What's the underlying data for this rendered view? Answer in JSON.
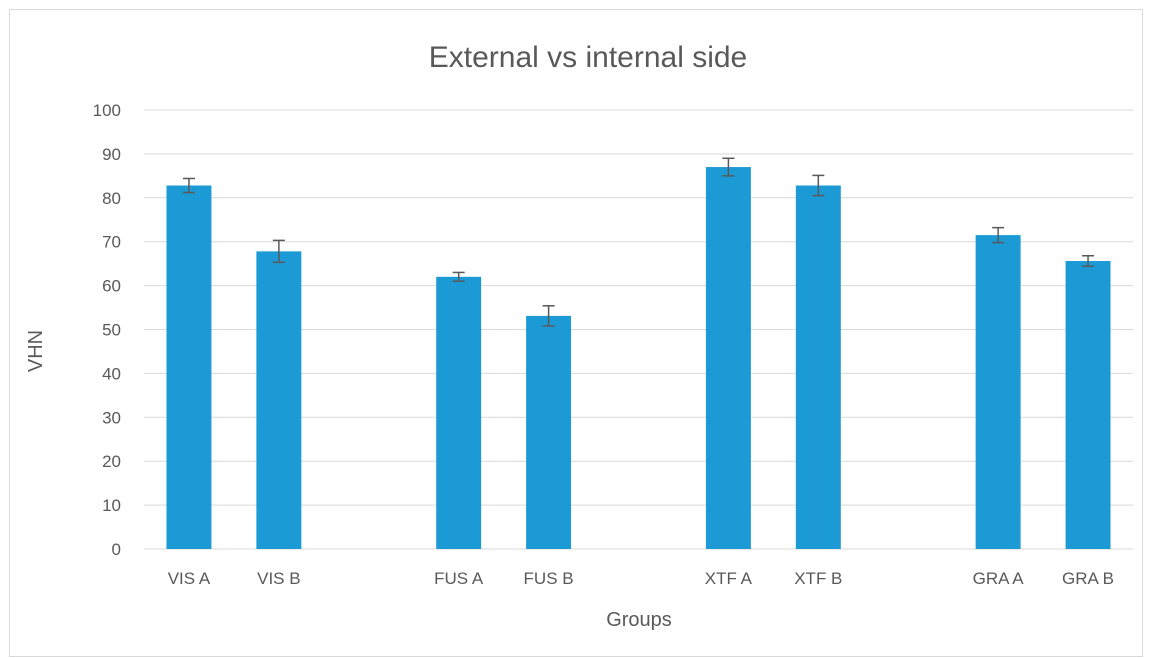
{
  "chart_data": {
    "type": "bar",
    "title": "External vs internal side",
    "xlabel": "Groups",
    "ylabel": "VHN",
    "ylim": [
      0,
      100
    ],
    "yticks": [
      0,
      10,
      20,
      30,
      40,
      50,
      60,
      70,
      80,
      90,
      100
    ],
    "grid": true,
    "legend": "none",
    "categories": [
      "VIS A",
      "VIS B",
      "",
      "FUS A",
      "FUS B",
      "",
      "XTF A",
      "XTF B",
      "",
      "GRA A",
      "GRA B"
    ],
    "values": [
      82.8,
      67.8,
      null,
      62.0,
      53.1,
      null,
      87.0,
      82.8,
      null,
      71.5,
      65.6
    ],
    "error": [
      1.6,
      2.5,
      null,
      1.0,
      2.3,
      null,
      2.0,
      2.3,
      null,
      1.7,
      1.2
    ],
    "colors": {
      "bar": "#1b9ad6",
      "grid": "#d9d9d9",
      "text": "#595959",
      "errorbar": "#595959"
    }
  }
}
